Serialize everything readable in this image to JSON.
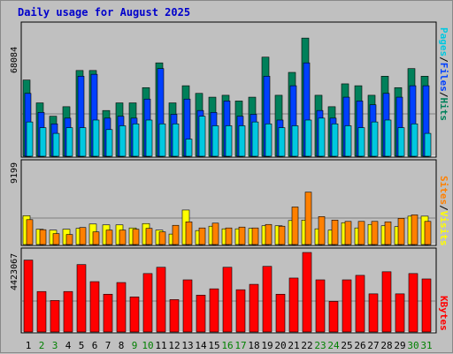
{
  "title": "Daily usage for August 2025",
  "panels": {
    "top": {
      "max_label": "68084",
      "legend": [
        {
          "text": "Pages",
          "color": "#00c8e0"
        },
        {
          "text": "/",
          "color": "#000000"
        },
        {
          "text": "Files",
          "color": "#0040ff"
        },
        {
          "text": "/",
          "color": "#000000"
        },
        {
          "text": "Hits",
          "color": "#00805a"
        }
      ]
    },
    "mid": {
      "max_label": "9199",
      "legend": [
        {
          "text": "Sites",
          "color": "#ff8000"
        },
        {
          "text": "/",
          "color": "#000000"
        },
        {
          "text": "Visits",
          "color": "#ffff00"
        }
      ]
    },
    "bot": {
      "max_label": "4423067",
      "legend": [
        {
          "text": "KBytes",
          "color": "#ff0000"
        }
      ]
    }
  },
  "chart_data": {
    "type": "bar",
    "title": "Daily usage for August 2025",
    "categories": [
      "1",
      "2",
      "3",
      "4",
      "5",
      "6",
      "7",
      "8",
      "9",
      "10",
      "11",
      "12",
      "13",
      "14",
      "15",
      "16",
      "17",
      "18",
      "19",
      "20",
      "21",
      "22",
      "23",
      "24",
      "25",
      "26",
      "27",
      "28",
      "29",
      "30",
      "31"
    ],
    "weekend_days": [
      "2",
      "3",
      "9",
      "10",
      "16",
      "17",
      "23",
      "24",
      "30",
      "31"
    ],
    "weekend_color": "#008000",
    "colors": {
      "hits": "#00805a",
      "files": "#0040ff",
      "pages": "#00c8e0",
      "visits": "#ffff00",
      "sites": "#ff8000",
      "kbytes": "#ff0000"
    },
    "series": [
      {
        "name": "Hits",
        "panel": "top",
        "ymax": 68084,
        "values": [
          40000,
          28000,
          21000,
          26000,
          45000,
          45000,
          24000,
          28000,
          28000,
          36000,
          49000,
          28000,
          37000,
          33000,
          31000,
          32000,
          29000,
          31000,
          52000,
          32000,
          44000,
          62000,
          32000,
          26000,
          38000,
          37000,
          32000,
          42000,
          36000,
          46000,
          42000
        ]
      },
      {
        "name": "Files",
        "panel": "top",
        "ymax": 68084,
        "values": [
          33000,
          23000,
          17000,
          20000,
          42000,
          43000,
          20000,
          21000,
          20000,
          30000,
          46000,
          22000,
          30000,
          24000,
          23000,
          29000,
          21000,
          22000,
          42000,
          19000,
          37000,
          49000,
          24000,
          20000,
          31000,
          29000,
          27000,
          33000,
          31000,
          37000,
          37000
        ]
      },
      {
        "name": "Pages",
        "panel": "top",
        "ymax": 68084,
        "values": [
          18000,
          15000,
          12000,
          15000,
          15000,
          19000,
          14000,
          16000,
          17000,
          19000,
          17000,
          17000,
          9000,
          21000,
          16000,
          16000,
          16000,
          18000,
          17000,
          15000,
          16000,
          19000,
          20000,
          17000,
          16000,
          15000,
          18000,
          19000,
          15000,
          17000,
          12000
        ]
      },
      {
        "name": "Visits",
        "panel": "mid",
        "ymax": 9199,
        "values": [
          3300,
          1750,
          1650,
          1750,
          1850,
          2350,
          2250,
          2250,
          1900,
          2400,
          1650,
          1200,
          3950,
          1600,
          2100,
          1800,
          1800,
          1850,
          2150,
          2150,
          2750,
          2800,
          1800,
          1650,
          2500,
          1900,
          2300,
          2150,
          2050,
          3250,
          3250
        ]
      },
      {
        "name": "Sites",
        "panel": "mid",
        "ymax": 9199,
        "values": [
          2850,
          1700,
          1250,
          1150,
          1950,
          1450,
          1650,
          1650,
          1750,
          1850,
          1450,
          2200,
          2600,
          1900,
          2450,
          1900,
          2000,
          1900,
          2300,
          2100,
          4300,
          6000,
          3200,
          2800,
          2650,
          2650,
          2650,
          2600,
          3000,
          3400,
          2650
        ]
      },
      {
        "name": "KBytes",
        "panel": "bot",
        "ymax": 4423067,
        "values": [
          4000000,
          2250000,
          1750000,
          2250000,
          3750000,
          2800000,
          2100000,
          2750000,
          1950000,
          3250000,
          3600000,
          1800000,
          2900000,
          2050000,
          2400000,
          3600000,
          2350000,
          2650000,
          3650000,
          2100000,
          3000000,
          4423067,
          2900000,
          1700000,
          2900000,
          3150000,
          2120000,
          3350000,
          2120000,
          3250000,
          2950000
        ]
      }
    ]
  }
}
